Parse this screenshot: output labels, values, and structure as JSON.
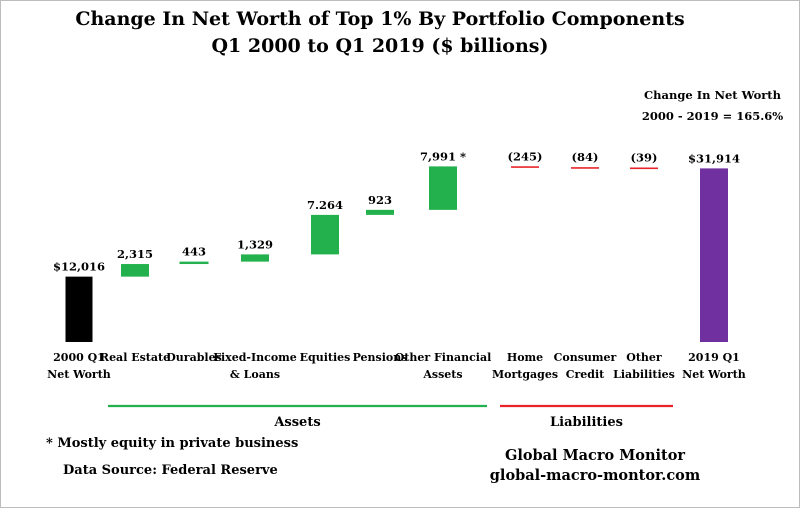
{
  "chart_data": {
    "type": "waterfall",
    "title": "Change In Net Worth of Top 1% By Portfolio Components",
    "subtitle": "Q1 2000 to Q1 2019 ($ billions)",
    "units": "$ billions",
    "categories": [
      [
        "2000 Q1",
        "Net Worth"
      ],
      [
        "Real Estate"
      ],
      [
        "Durables"
      ],
      [
        "Fixed-Income",
        "& Loans"
      ],
      [
        "Equities"
      ],
      [
        "Pensions"
      ],
      [
        "Other Financial",
        "Assets"
      ],
      [
        "Home",
        "Mortgages"
      ],
      [
        "Consumer",
        "Credit"
      ],
      [
        "Other",
        "Liabilities"
      ],
      [
        "2019 Q1",
        "Net Worth"
      ]
    ],
    "values": [
      12016,
      2315,
      443,
      1329,
      7264,
      923,
      7991,
      -245,
      -84,
      -39,
      31914
    ],
    "kinds": [
      "total",
      "asset",
      "asset",
      "asset",
      "asset",
      "asset",
      "asset",
      "liability",
      "liability",
      "liability",
      "total"
    ],
    "data_labels": [
      "$12,016",
      "2,315",
      "443",
      "1,329",
      "7.264",
      "923",
      "7,991 *",
      "(245)",
      "(84)",
      "(39)",
      "$31,914"
    ],
    "groups": [
      {
        "label": "Assets",
        "color": "#22b14c"
      },
      {
        "label": "Liabilities",
        "color": "#e8232a"
      }
    ],
    "colors": {
      "start_total": "#000000",
      "asset": "#22b14c",
      "liability": "#e8232a",
      "end_total": "#7030a0"
    },
    "annotation": {
      "line1": "Change In Net Worth",
      "line2": "2000 - 2019 = 165.6%"
    }
  },
  "footnote": "* Mostly equity in private business",
  "source": "Data Source:  Federal Reserve",
  "brand": {
    "name": "Global Macro Monitor",
    "url": "global-macro-montor.com"
  }
}
